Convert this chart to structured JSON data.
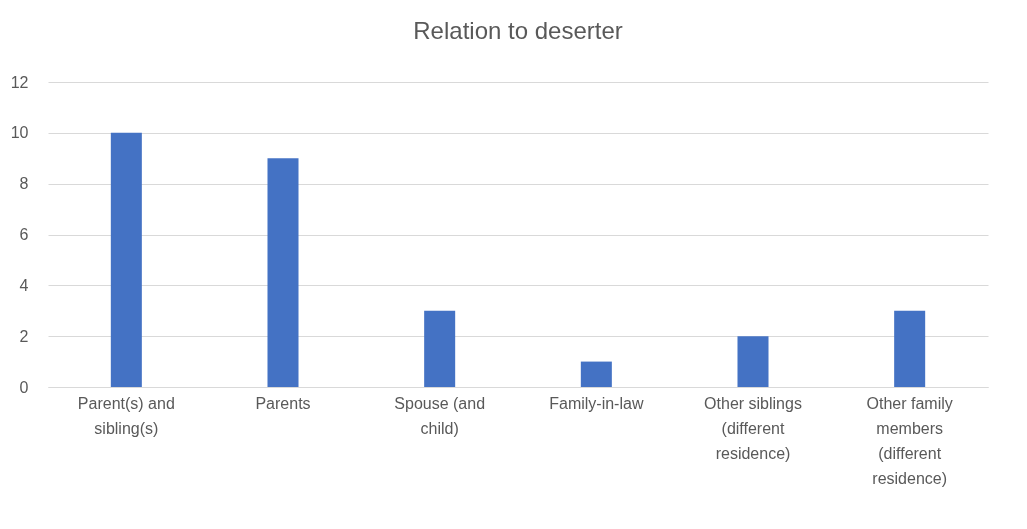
{
  "chart_data": {
    "type": "bar",
    "title": "Relation to deserter",
    "categories": [
      "Parent(s) and sibling(s)",
      "Parents",
      "Spouse (and child)",
      "Family-in-law",
      "Other siblings (different residence)",
      "Other family members (different residence)"
    ],
    "values": [
      10,
      9,
      3,
      1,
      2,
      3
    ],
    "color": "#4472c4",
    "ylim": [
      0,
      12
    ],
    "yticks": [
      0,
      2,
      4,
      6,
      8,
      10,
      12
    ],
    "grid": "y"
  }
}
